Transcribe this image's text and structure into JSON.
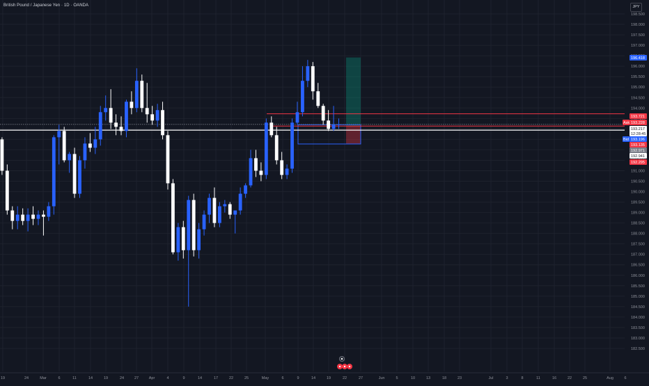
{
  "header": {
    "symbol_title": "British Pound / Japanese Yen · 1D · OANDA",
    "currency_button": "JPY"
  },
  "price_axis": {
    "ticks": [
      "198.500",
      "198.000",
      "197.500",
      "197.000",
      "196.500",
      "196.000",
      "195.500",
      "195.000",
      "194.500",
      "194.000",
      "193.500",
      "193.000",
      "192.500",
      "192.000",
      "191.500",
      "191.000",
      "190.500",
      "190.000",
      "189.500",
      "189.000",
      "188.500",
      "188.000",
      "187.500",
      "187.000",
      "186.500",
      "186.000",
      "185.500",
      "185.000",
      "184.500",
      "184.000",
      "183.500",
      "183.000",
      "182.500"
    ],
    "tags": [
      {
        "name": "position-target-tag",
        "label": "",
        "text": "196.418",
        "color": "#2962ff",
        "text_color": "#ffffff"
      },
      {
        "name": "resistance-line-tag",
        "label": "",
        "text": "193.721",
        "color": "#f23645",
        "text_color": "#ffffff"
      },
      {
        "name": "ask-price-tag",
        "label": "Ask",
        "text": "193.228",
        "color": "#f23645",
        "text_color": "#ffffff"
      },
      {
        "name": "last-price-tag",
        "label": "",
        "text": "193.217",
        "color": "#ffffff",
        "text_color": "#131722"
      },
      {
        "name": "countdown-tag",
        "label": "",
        "text": "12:28:45",
        "color": "#ffffff",
        "text_color": "#131722"
      },
      {
        "name": "bid-price-tag",
        "label": "Bid",
        "text": "193.196",
        "color": "#2962ff",
        "text_color": "#ffffff"
      },
      {
        "name": "entry-line-tag",
        "label": "",
        "text": "193.135",
        "color": "#f23645",
        "text_color": "#ffffff"
      },
      {
        "name": "box-bottom-tag",
        "label": "",
        "text": "192.971",
        "color": "#787b86",
        "text_color": "#ffffff"
      },
      {
        "name": "support-line-tag",
        "label": "",
        "text": "192.941",
        "color": "#ffffff",
        "text_color": "#131722"
      },
      {
        "name": "stop-loss-tag",
        "label": "",
        "text": "192.295",
        "color": "#f23645",
        "text_color": "#ffffff"
      }
    ]
  },
  "time_axis": {
    "labels": [
      "19",
      "24",
      "Mar",
      "6",
      "11",
      "14",
      "19",
      "24",
      "27",
      "Apr",
      "4",
      "9",
      "14",
      "17",
      "22",
      "25",
      "May",
      "6",
      "9",
      "14",
      "19",
      "22",
      "27",
      "Jun",
      "5",
      "10",
      "13",
      "18",
      "23",
      "Jul",
      "3",
      "8",
      "11",
      "16",
      "22",
      "25",
      "Aug",
      "6"
    ]
  },
  "colors": {
    "background": "#131722",
    "bull": "#2962ff",
    "bear": "#ffffff",
    "grid": "#1e222d",
    "profit_zone": "#089981",
    "loss_zone": "#f23645",
    "rect_stroke": "#2962ff",
    "red_line": "#f23645",
    "white_line": "#ffffff",
    "event_icon": "#f23645"
  },
  "chart_data": {
    "type": "candlestick",
    "symbol": "GBPJPY",
    "ylim": [
      182.2,
      198.9
    ],
    "candles": [
      {
        "o": 192.5,
        "h": 192.6,
        "l": 190.8,
        "c": 191.0
      },
      {
        "o": 191.0,
        "h": 191.3,
        "l": 188.9,
        "c": 189.1
      },
      {
        "o": 189.1,
        "h": 189.3,
        "l": 188.2,
        "c": 188.6
      },
      {
        "o": 188.6,
        "h": 189.3,
        "l": 188.2,
        "c": 188.9
      },
      {
        "o": 188.9,
        "h": 189.2,
        "l": 188.4,
        "c": 188.6
      },
      {
        "o": 188.6,
        "h": 189.2,
        "l": 188.1,
        "c": 188.9
      },
      {
        "o": 188.9,
        "h": 189.3,
        "l": 188.4,
        "c": 188.7
      },
      {
        "o": 188.7,
        "h": 189.1,
        "l": 188.4,
        "c": 188.9
      },
      {
        "o": 188.9,
        "h": 189.1,
        "l": 187.9,
        "c": 188.8
      },
      {
        "o": 188.8,
        "h": 189.5,
        "l": 188.6,
        "c": 189.3
      },
      {
        "o": 189.3,
        "h": 192.7,
        "l": 188.9,
        "c": 192.6
      },
      {
        "o": 192.6,
        "h": 193.2,
        "l": 191.3,
        "c": 192.9
      },
      {
        "o": 192.9,
        "h": 193.1,
        "l": 191.4,
        "c": 191.5
      },
      {
        "o": 191.5,
        "h": 191.9,
        "l": 190.9,
        "c": 191.8
      },
      {
        "o": 191.8,
        "h": 192.1,
        "l": 189.7,
        "c": 189.9
      },
      {
        "o": 189.9,
        "h": 191.7,
        "l": 189.7,
        "c": 191.5
      },
      {
        "o": 191.5,
        "h": 192.6,
        "l": 191.1,
        "c": 192.3
      },
      {
        "o": 192.3,
        "h": 192.8,
        "l": 191.9,
        "c": 192.1
      },
      {
        "o": 192.1,
        "h": 193.1,
        "l": 191.8,
        "c": 192.5
      },
      {
        "o": 192.5,
        "h": 194.1,
        "l": 192.2,
        "c": 193.8
      },
      {
        "o": 193.8,
        "h": 194.6,
        "l": 193.4,
        "c": 194.0
      },
      {
        "o": 194.0,
        "h": 194.9,
        "l": 193.0,
        "c": 193.3
      },
      {
        "o": 193.3,
        "h": 193.7,
        "l": 192.7,
        "c": 193.1
      },
      {
        "o": 193.1,
        "h": 193.6,
        "l": 192.7,
        "c": 192.9
      },
      {
        "o": 192.9,
        "h": 194.4,
        "l": 192.6,
        "c": 194.3
      },
      {
        "o": 194.3,
        "h": 194.8,
        "l": 193.7,
        "c": 194.0
      },
      {
        "o": 194.0,
        "h": 195.9,
        "l": 193.8,
        "c": 195.3
      },
      {
        "o": 195.3,
        "h": 195.6,
        "l": 193.8,
        "c": 194.0
      },
      {
        "o": 194.0,
        "h": 195.2,
        "l": 193.3,
        "c": 193.7
      },
      {
        "o": 193.7,
        "h": 194.1,
        "l": 193.2,
        "c": 193.4
      },
      {
        "o": 193.4,
        "h": 194.2,
        "l": 193.1,
        "c": 193.9
      },
      {
        "o": 193.9,
        "h": 194.3,
        "l": 192.5,
        "c": 192.7
      },
      {
        "o": 192.7,
        "h": 192.9,
        "l": 190.1,
        "c": 190.4
      },
      {
        "o": 190.4,
        "h": 190.6,
        "l": 187.0,
        "c": 187.1
      },
      {
        "o": 187.1,
        "h": 188.5,
        "l": 186.7,
        "c": 188.3
      },
      {
        "o": 188.3,
        "h": 188.6,
        "l": 186.8,
        "c": 187.2
      },
      {
        "o": 187.2,
        "h": 189.8,
        "l": 184.5,
        "c": 189.6
      },
      {
        "o": 189.6,
        "h": 189.9,
        "l": 186.9,
        "c": 187.2
      },
      {
        "o": 187.2,
        "h": 188.5,
        "l": 186.8,
        "c": 188.2
      },
      {
        "o": 188.2,
        "h": 189.1,
        "l": 187.9,
        "c": 188.9
      },
      {
        "o": 188.9,
        "h": 189.9,
        "l": 188.5,
        "c": 189.7
      },
      {
        "o": 189.7,
        "h": 190.2,
        "l": 188.3,
        "c": 188.5
      },
      {
        "o": 188.5,
        "h": 189.5,
        "l": 188.3,
        "c": 189.3
      },
      {
        "o": 189.3,
        "h": 189.6,
        "l": 189.0,
        "c": 189.4
      },
      {
        "o": 189.4,
        "h": 189.5,
        "l": 188.7,
        "c": 188.9
      },
      {
        "o": 188.9,
        "h": 189.1,
        "l": 188.0,
        "c": 189.1
      },
      {
        "o": 189.1,
        "h": 190.2,
        "l": 188.9,
        "c": 189.9
      },
      {
        "o": 189.9,
        "h": 190.4,
        "l": 189.7,
        "c": 190.3
      },
      {
        "o": 190.3,
        "h": 192.0,
        "l": 190.2,
        "c": 191.6
      },
      {
        "o": 191.6,
        "h": 192.0,
        "l": 190.7,
        "c": 191.0
      },
      {
        "o": 191.0,
        "h": 191.4,
        "l": 190.5,
        "c": 190.8
      },
      {
        "o": 190.8,
        "h": 193.5,
        "l": 190.6,
        "c": 193.3
      },
      {
        "o": 193.3,
        "h": 193.6,
        "l": 192.6,
        "c": 192.7
      },
      {
        "o": 192.7,
        "h": 193.1,
        "l": 191.3,
        "c": 191.5
      },
      {
        "o": 191.5,
        "h": 191.9,
        "l": 190.6,
        "c": 190.8
      },
      {
        "o": 190.8,
        "h": 191.3,
        "l": 190.6,
        "c": 191.1
      },
      {
        "o": 191.1,
        "h": 193.5,
        "l": 190.9,
        "c": 193.3
      },
      {
        "o": 193.3,
        "h": 194.3,
        "l": 193.2,
        "c": 193.8
      },
      {
        "o": 193.8,
        "h": 196.0,
        "l": 193.6,
        "c": 195.3
      },
      {
        "o": 195.3,
        "h": 196.3,
        "l": 195.0,
        "c": 196.0
      },
      {
        "o": 196.0,
        "h": 196.2,
        "l": 194.4,
        "c": 194.8
      },
      {
        "o": 194.8,
        "h": 195.2,
        "l": 194.0,
        "c": 194.1
      },
      {
        "o": 194.1,
        "h": 194.2,
        "l": 193.2,
        "c": 193.4
      },
      {
        "o": 193.4,
        "h": 193.9,
        "l": 192.9,
        "c": 193.0
      },
      {
        "o": 193.0,
        "h": 194.1,
        "l": 192.9,
        "c": 193.2
      },
      {
        "o": 193.2,
        "h": 193.5,
        "l": 193.0,
        "c": 193.217
      }
    ]
  }
}
